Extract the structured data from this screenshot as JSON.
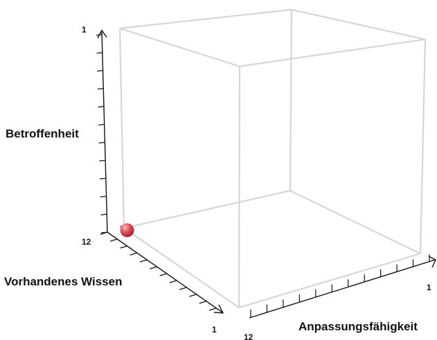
{
  "chart_data": {
    "type": "scatter3d",
    "axes": {
      "x": {
        "label": "Anpassungsfähigkeit",
        "range": [
          12,
          1
        ],
        "min_label": "12",
        "max_label": "1",
        "ticks": 12
      },
      "y": {
        "label": "Betroffenheit",
        "range": [
          12,
          1
        ],
        "min_label": "12",
        "max_label": "1",
        "ticks": 12
      },
      "z": {
        "label": "Vorhandenes Wissen",
        "range": [
          1,
          12
        ],
        "min_label": "1",
        "ticks": 12
      }
    },
    "points": [
      {
        "x": 12,
        "y": 12,
        "z": 1.3,
        "color": "#d9545f"
      }
    ],
    "box_color": "#d6d6d6",
    "axis_color": "#111111",
    "projection_color": "#8b1a24"
  }
}
